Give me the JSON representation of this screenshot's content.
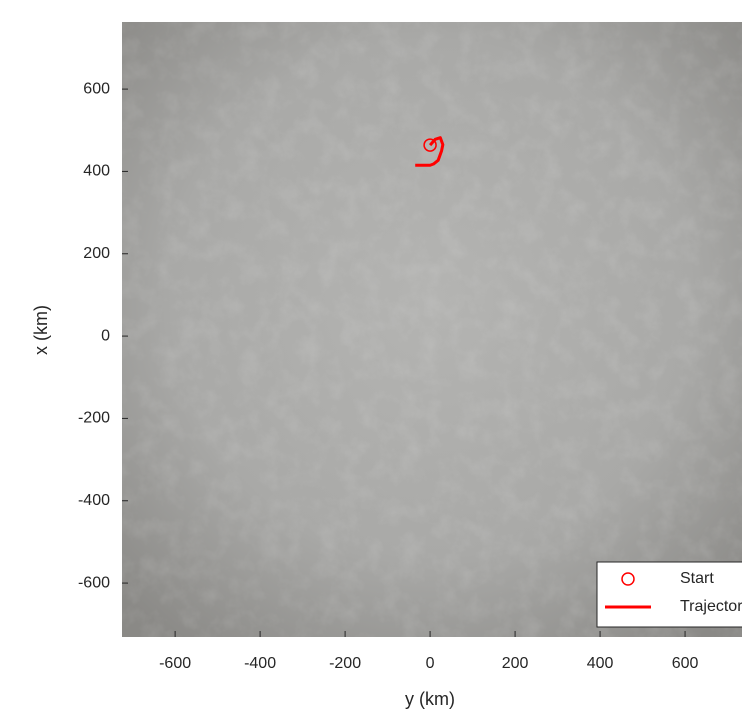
{
  "chart_data": {
    "type": "line",
    "xlabel": "y (km)",
    "ylabel": "x (km)",
    "xlim": [
      -725,
      734
    ],
    "ylim": [
      -731,
      763
    ],
    "xticks": [
      -600,
      -400,
      -200,
      0,
      200,
      400,
      600
    ],
    "yticks": [
      -600,
      -400,
      -200,
      0,
      200,
      400,
      600
    ],
    "legend": "lower right",
    "series": [
      {
        "name": "Start",
        "color": "#ff0000",
        "marker": "circle",
        "x": [
          0
        ],
        "values": [
          464
        ]
      },
      {
        "name": "Trajectory",
        "color": "#ff0000",
        "x": [
          0,
          12,
          24,
          30,
          27,
          19,
          8,
          0,
          -15,
          -35
        ],
        "values": [
          464,
          478,
          482,
          465,
          450,
          427,
          418,
          415,
          415,
          415
        ]
      }
    ]
  }
}
